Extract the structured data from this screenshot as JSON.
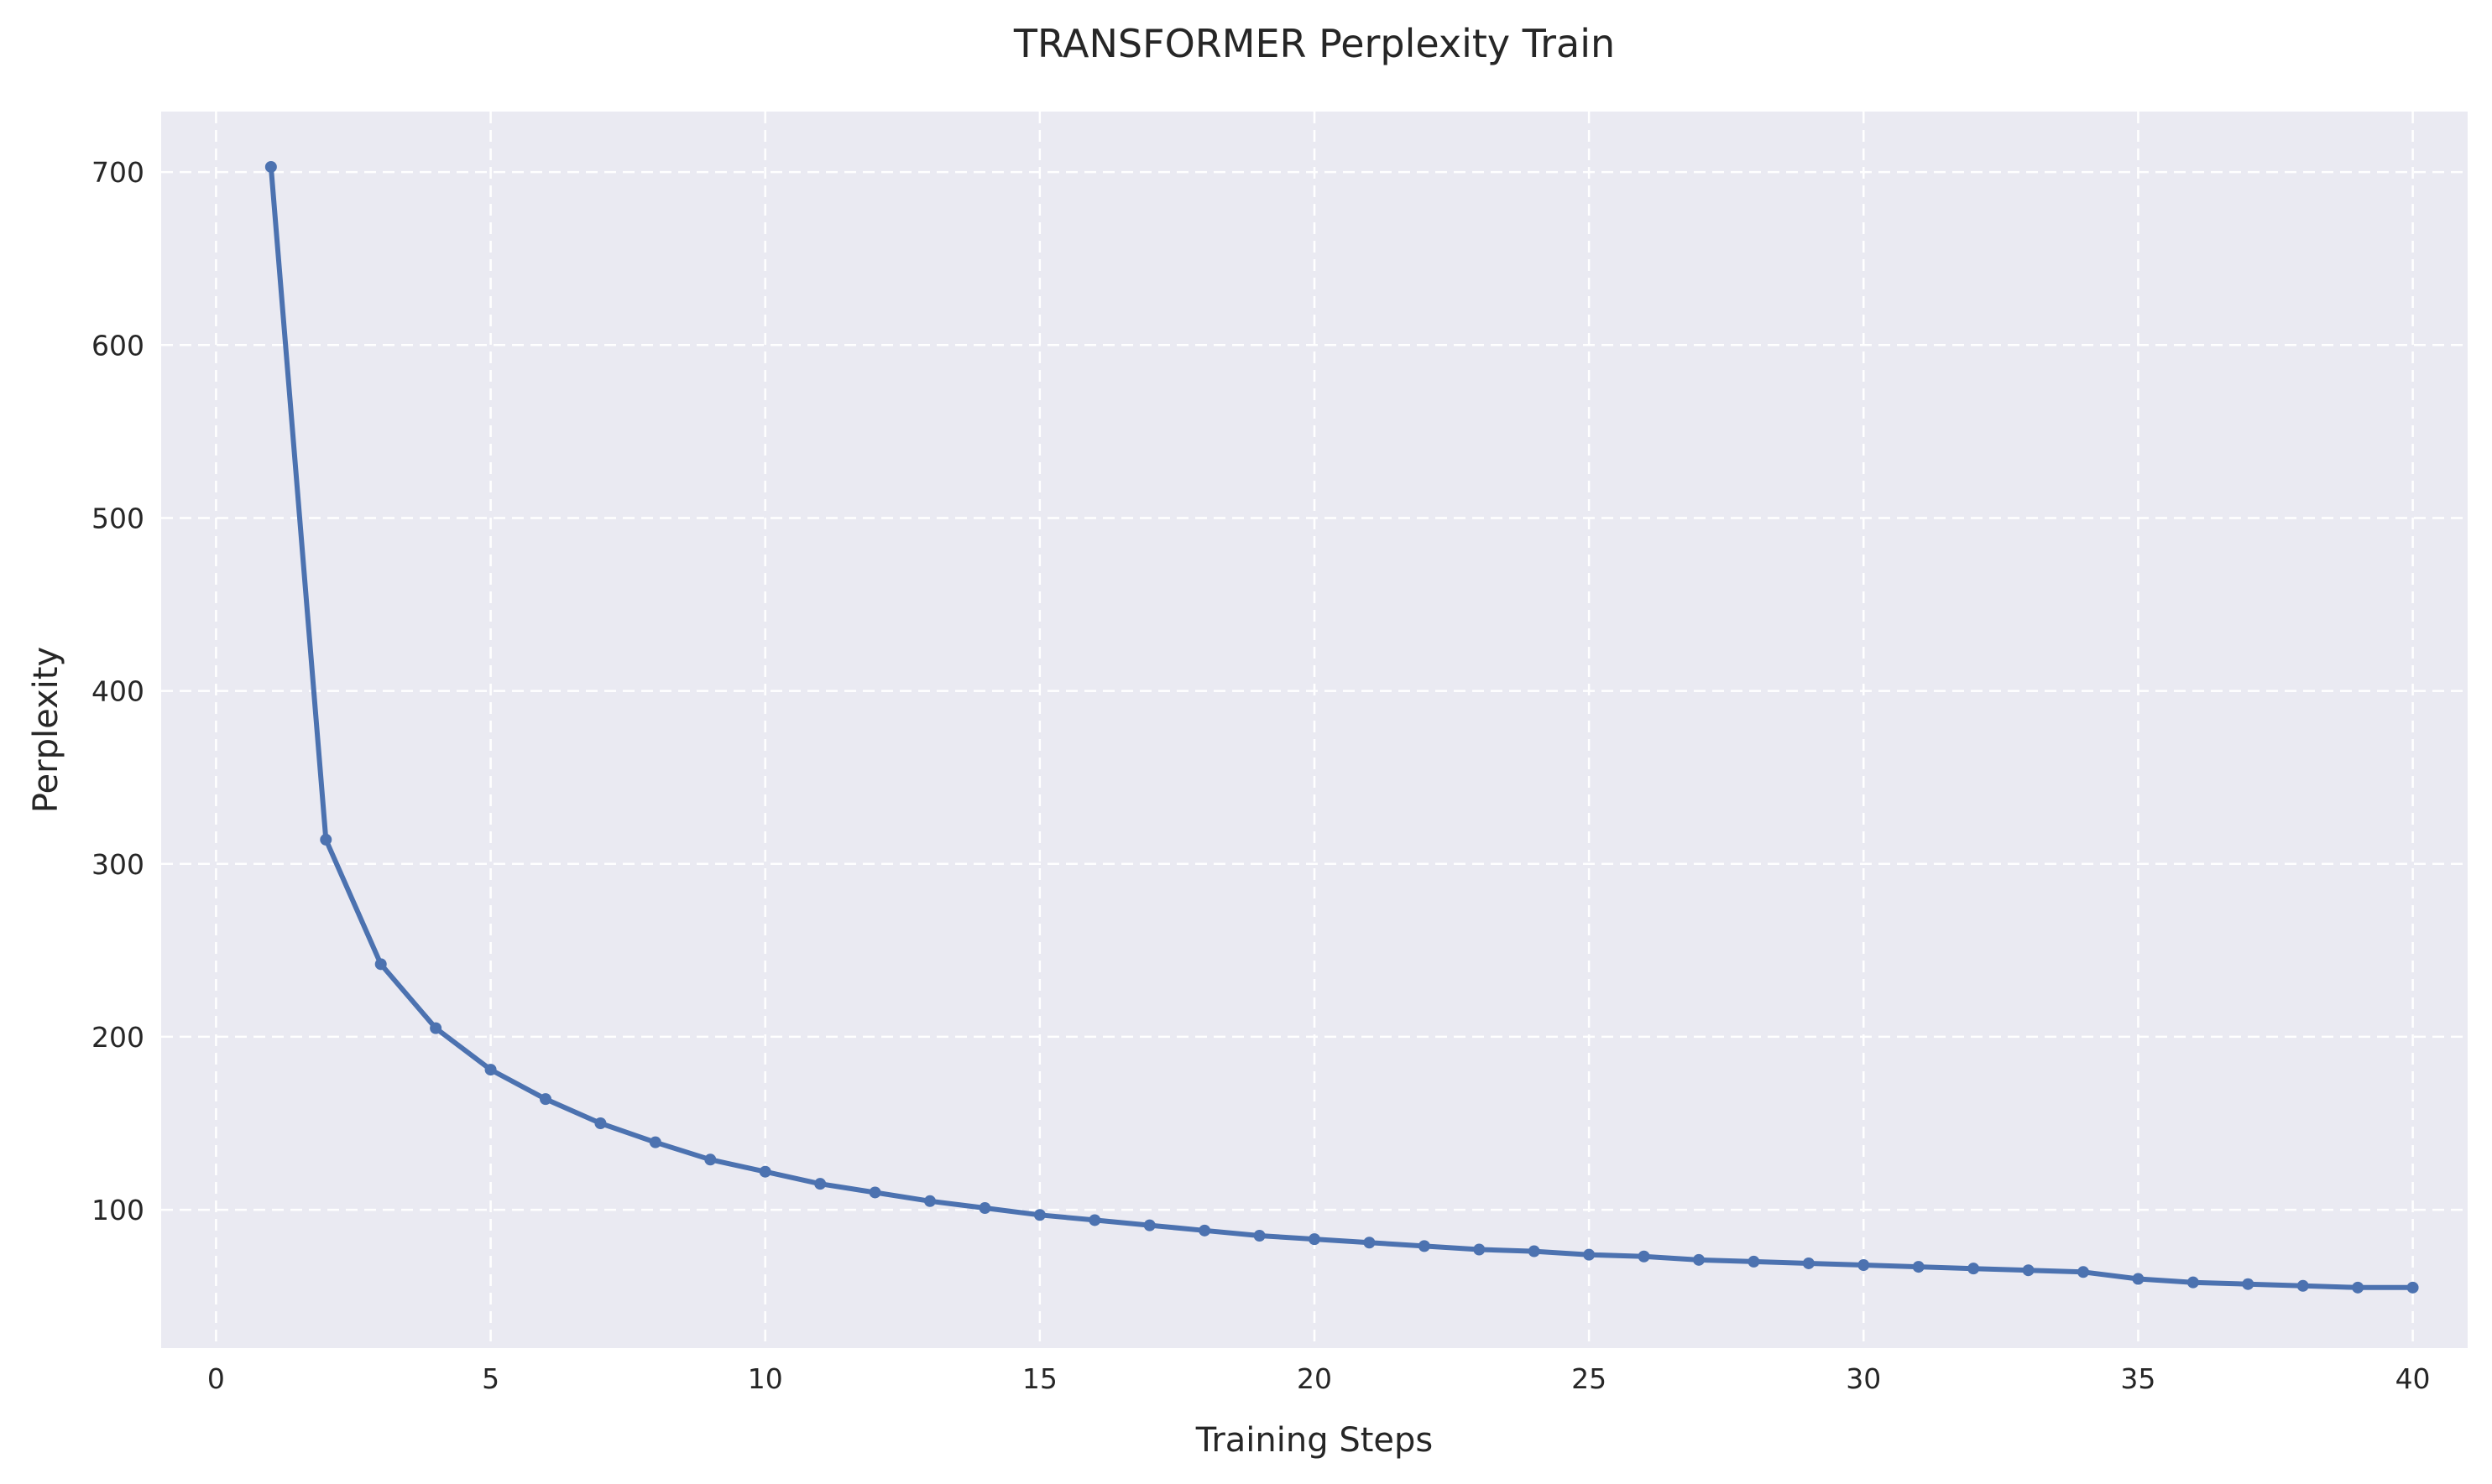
{
  "chart_data": {
    "type": "line",
    "title": "TRANSFORMER Perplexity Train",
    "xlabel": "Training Steps",
    "ylabel": "Perplexity",
    "xlim": [
      -1,
      41
    ],
    "ylim": [
      20,
      735
    ],
    "xticks": [
      0,
      5,
      10,
      15,
      20,
      25,
      30,
      35,
      40
    ],
    "yticks": [
      100,
      200,
      300,
      400,
      500,
      600,
      700
    ],
    "grid": true,
    "background_color": "#eaeaf2",
    "line_color": "#4c72b0",
    "series": [
      {
        "x": [
          1,
          2,
          3,
          4,
          5,
          6,
          7,
          8,
          9,
          10,
          11,
          12,
          13,
          14,
          15,
          16,
          17,
          18,
          19,
          20,
          21,
          22,
          23,
          24,
          25,
          26,
          27,
          28,
          29,
          30,
          31,
          32,
          33,
          34,
          35,
          36,
          37,
          38,
          39,
          40
        ],
        "values": [
          703,
          314,
          242,
          205,
          181,
          164,
          150,
          139,
          129,
          122,
          115,
          110,
          105,
          101,
          97,
          94,
          91,
          88,
          85,
          83,
          81,
          79,
          77,
          76,
          74,
          73,
          71,
          70,
          69,
          68,
          67,
          66,
          65,
          64,
          60,
          58,
          57,
          56,
          55,
          55
        ]
      }
    ]
  }
}
